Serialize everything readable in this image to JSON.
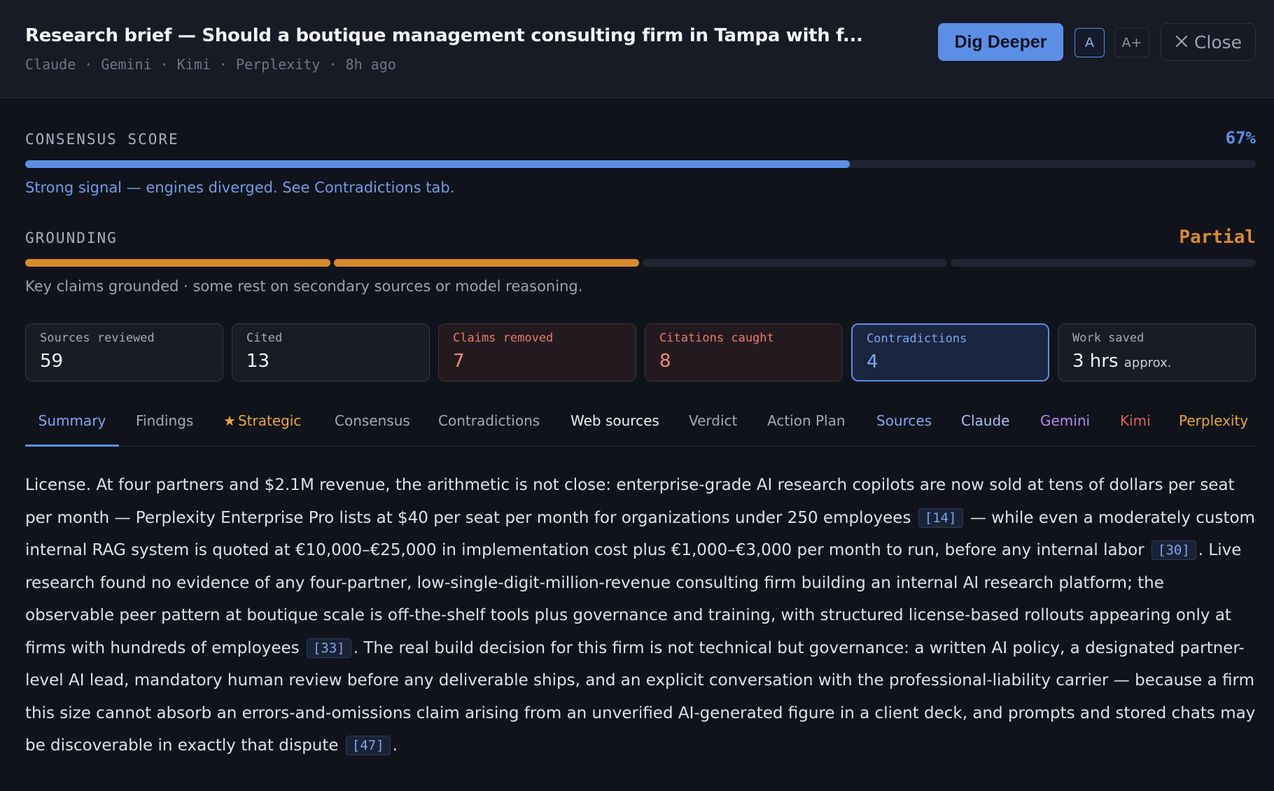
{
  "header": {
    "title": "Research brief — Should a boutique management consulting firm in Tampa with f...",
    "engines": [
      "Claude",
      "Gemini",
      "Kimi",
      "Perplexity"
    ],
    "age": "8h ago",
    "meta_text": "Claude · Gemini · Kimi · Perplexity · 8h ago",
    "dig_deeper_label": "Dig Deeper",
    "font_a_label": "A",
    "font_aplus_label": "A+",
    "close_label": "Close"
  },
  "consensus": {
    "label": "CONSENSUS SCORE",
    "value_text": "67%",
    "value": 0.67,
    "note": "Strong signal — engines diverged. See Contradictions tab."
  },
  "grounding": {
    "label": "GROUNDING",
    "value_text": "Partial",
    "segments_filled": 2,
    "segments_total": 4,
    "note": "Key claims grounded · some rest on secondary sources or model reasoning."
  },
  "stats": [
    {
      "label": "Sources reviewed",
      "value": "59",
      "tone": "neutral"
    },
    {
      "label": "Cited",
      "value": "13",
      "tone": "neutral"
    },
    {
      "label": "Claims removed",
      "value": "7",
      "tone": "red"
    },
    {
      "label": "Citations caught",
      "value": "8",
      "tone": "red"
    },
    {
      "label": "Contradictions",
      "value": "4",
      "tone": "blue"
    },
    {
      "label": "Work saved",
      "value": "3 hrs",
      "suffix": "approx.",
      "tone": "neutral"
    }
  ],
  "tabs": [
    {
      "label": "Summary",
      "active": true
    },
    {
      "label": "Findings"
    },
    {
      "label": "Strategic",
      "icon": "star-icon"
    },
    {
      "label": "Consensus"
    },
    {
      "label": "Contradictions"
    },
    {
      "label": "Web sources"
    },
    {
      "label": "Verdict"
    },
    {
      "label": "Action Plan"
    },
    {
      "label": "Sources"
    },
    {
      "label": "Claude"
    },
    {
      "label": "Gemini"
    },
    {
      "label": "Kimi"
    },
    {
      "label": "Perplexity"
    }
  ],
  "summary": {
    "p1": "License. At four partners and $2.1M revenue, the arithmetic is not close: enterprise-grade AI research copilots are now sold at tens of dollars per seat per month — Perplexity Enterprise Pro lists at $40 per seat per month for organizations under 250 employees",
    "c1": "[14]",
    "p2": " — while even a moderately custom internal RAG system is quoted at €10,000–€25,000 in implementation cost plus €1,000–€3,000 per month to run, before any internal labor",
    "c2": "[30]",
    "p3": ". Live research found no evidence of any four-partner, low-single-digit-million-revenue consulting firm building an internal AI research platform; the observable peer pattern at boutique scale is off-the-shelf tools plus governance and training, with structured license-based rollouts appearing only at firms with hundreds of employees",
    "c3": "[33]",
    "p4": ". The real build decision for this firm is not technical but governance: a written AI policy, a designated partner-level AI lead, mandatory human review before any deliverable ships, and an explicit conversation with the professional-liability carrier — because a firm this size cannot absorb an errors-and-omissions claim arising from an unverified AI-generated figure in a client deck, and prompts and stored chats may be discoverable in exactly that dispute",
    "c4": "[47]",
    "p5": "."
  },
  "colors": {
    "accent": "#5b8fe6",
    "grounding": "#d98a2b",
    "red": "#e67b6c",
    "strategic": "#e8a83a",
    "gemini": "#b48cf0",
    "kimi": "#e0604f",
    "perplexity": "#e8a83a"
  }
}
